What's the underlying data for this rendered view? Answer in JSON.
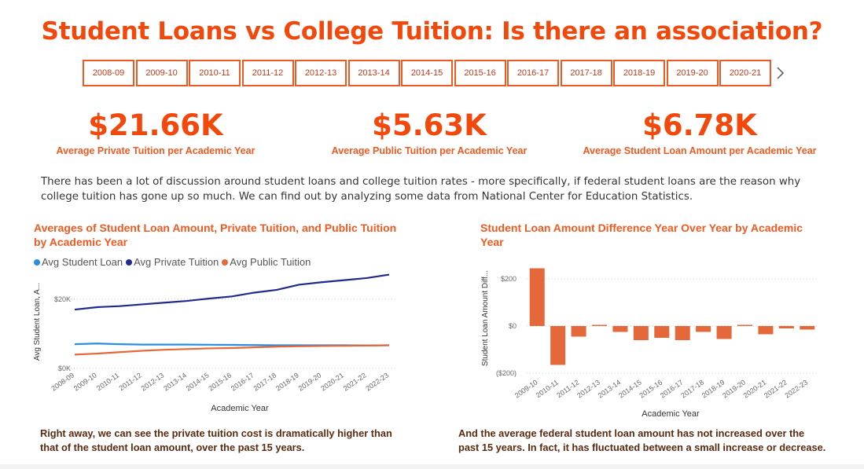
{
  "title": "Student Loans vs College Tuition: Is there an association?",
  "slicer": {
    "years": [
      "2008-09",
      "2009-10",
      "2010-11",
      "2011-12",
      "2012-13",
      "2013-14",
      "2014-15",
      "2015-16",
      "2016-17",
      "2017-18",
      "2018-19",
      "2019-20",
      "2020-21"
    ],
    "next_icon": "chevron-right-icon"
  },
  "kpis": [
    {
      "value": "$21.66K",
      "label": "Average Private Tuition per Academic Year"
    },
    {
      "value": "$5.63K",
      "label": "Average Public Tuition per Academic Year"
    },
    {
      "value": "$6.78K",
      "label": "Average Student Loan Amount per Academic Year"
    }
  ],
  "intro": "There has been a lot of discussion around student loans and college tuition rates - more specifically, if federal student loans are the reason why college tuition has gone up so much. We can find out by analyzing some data from National Center for Education Statistics.",
  "captions": {
    "left": "Right away, we can see the private tuition cost is dramatically higher than that of the student loan amount, over the past 15 years.",
    "right": "And the average federal student loan amount has not increased over the past 15 years. In fact, it has fluctuated between a small increase or decrease."
  },
  "colors": {
    "accent": "#f2480c",
    "student_loan": "#2b8de2",
    "private_tuition": "#1f2a8c",
    "public_tuition": "#e5683a",
    "bar": "#e5683a"
  },
  "chart_data": [
    {
      "type": "line",
      "title": "Averages of Student Loan Amount, Private Tuition, and Public Tuition by Academic Year",
      "xlabel": "Academic Year",
      "ylabel": "Avg Student Loan, A...",
      "yticks": [
        "$0K",
        "$20K"
      ],
      "ylim": [
        0,
        27000
      ],
      "grid": true,
      "legend_position": "top-left",
      "categories": [
        "2008-09",
        "2009-10",
        "2010-11",
        "2011-12",
        "2012-13",
        "2013-14",
        "2014-15",
        "2015-16",
        "2016-17",
        "2017-18",
        "2018-19",
        "2019-20",
        "2020-21",
        "2021-22",
        "2022-23"
      ],
      "series": [
        {
          "name": "Avg Student Loan",
          "values": [
            7000,
            7200,
            7000,
            6900,
            6900,
            6900,
            6850,
            6800,
            6750,
            6700,
            6700,
            6700,
            6700,
            6650,
            6700
          ]
        },
        {
          "name": "Avg Private Tuition",
          "values": [
            17000,
            17700,
            18000,
            18500,
            19000,
            19500,
            20200,
            20800,
            21900,
            22700,
            24200,
            24900,
            25500,
            26100,
            27100
          ]
        },
        {
          "name": "Avg Public Tuition",
          "values": [
            4000,
            4300,
            4700,
            5100,
            5400,
            5600,
            5800,
            5900,
            6100,
            6300,
            6400,
            6500,
            6550,
            6600,
            6700
          ]
        }
      ]
    },
    {
      "type": "bar",
      "title": "Student Loan Amount Difference Year Over Year by Academic Year",
      "xlabel": "Academic Year",
      "ylabel": "Student Loan Amount Diff...",
      "yticks": [
        "($200)",
        "$0",
        "$200"
      ],
      "ylim": [
        -200,
        250
      ],
      "grid": true,
      "categories": [
        "2009-10",
        "2010-11",
        "2011-12",
        "2012-13",
        "2013-14",
        "2014-15",
        "2015-16",
        "2016-17",
        "2017-18",
        "2018-19",
        "2019-20",
        "2020-21",
        "2021-22",
        "2022-23"
      ],
      "values": [
        245,
        -165,
        -45,
        5,
        -25,
        -60,
        -50,
        -60,
        -25,
        -55,
        5,
        -35,
        -10,
        -15
      ]
    }
  ]
}
